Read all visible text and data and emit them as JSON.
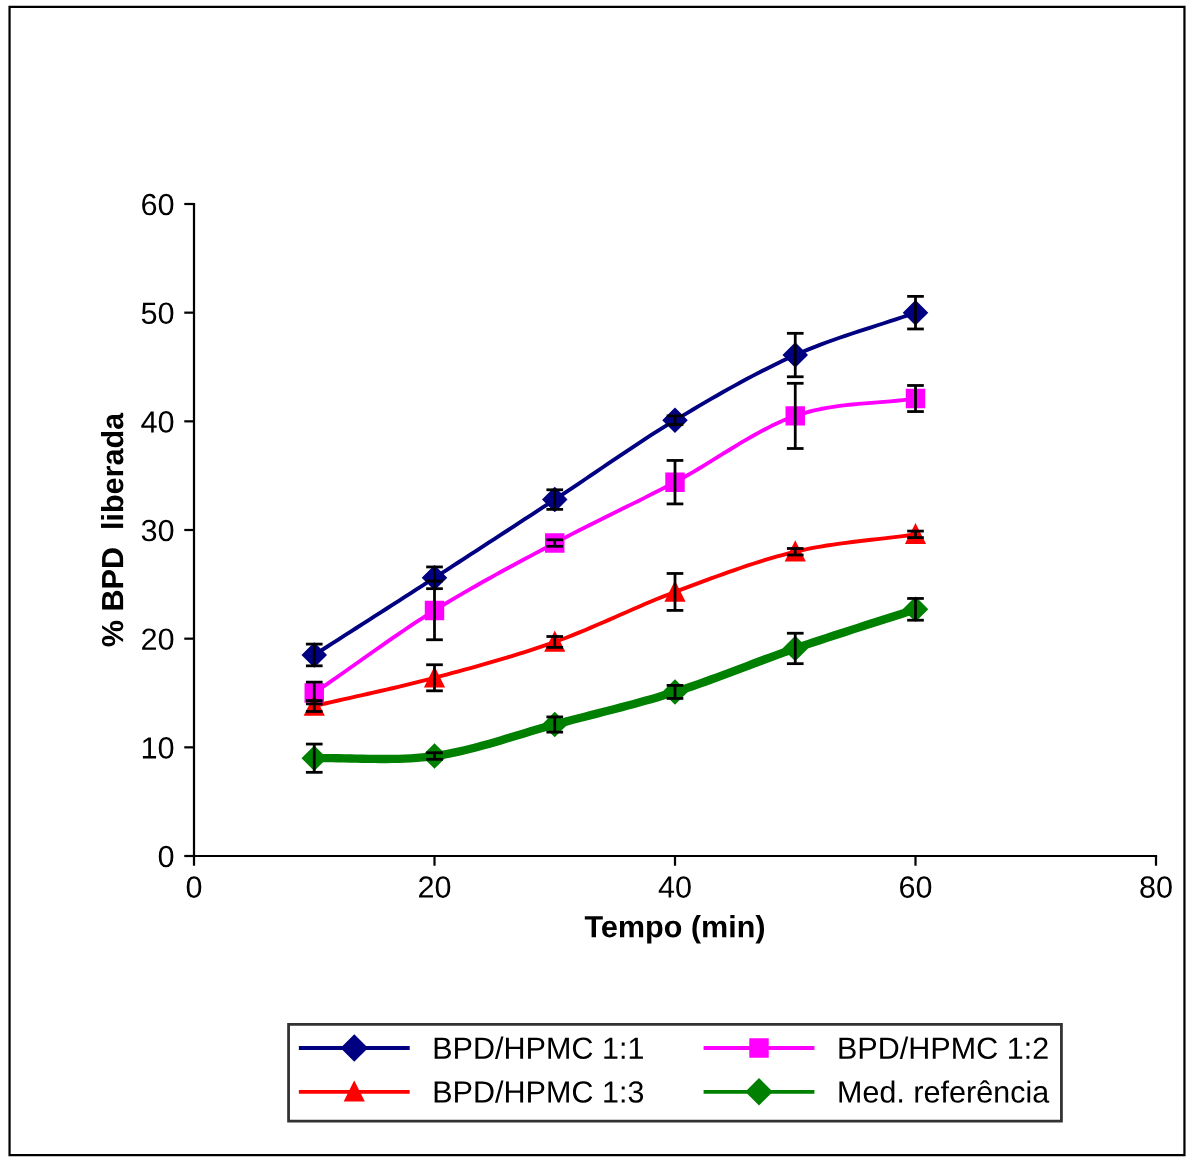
{
  "chart_data": {
    "type": "line",
    "xlabel": "Tempo (min)",
    "ylabel": "% BPD  liberada",
    "x": [
      10,
      20,
      30,
      40,
      50,
      60
    ],
    "xlim": [
      0,
      80
    ],
    "xticks": [
      0,
      20,
      40,
      60,
      80
    ],
    "ylim": [
      0,
      60
    ],
    "yticks": [
      0,
      10,
      20,
      30,
      40,
      50,
      60
    ],
    "grid": false,
    "legend": "bottom",
    "series": [
      {
        "name": "BPD/HPMC 1:1",
        "color": "#000080",
        "marker": "diamond",
        "values": [
          18.5,
          25.6,
          32.8,
          40.1,
          46.1,
          50.0
        ],
        "errors": [
          1.0,
          1.0,
          0.9,
          0.4,
          2.0,
          1.5
        ]
      },
      {
        "name": "BPD/HPMC 1:2",
        "color": "#ff00ff",
        "marker": "square",
        "values": [
          15.0,
          22.6,
          28.8,
          34.4,
          40.5,
          42.1
        ],
        "errors": [
          1.0,
          2.7,
          0.3,
          2.0,
          3.0,
          1.2
        ]
      },
      {
        "name": "BPD/HPMC 1:3",
        "color": "#ff0000",
        "marker": "triangle",
        "values": [
          13.8,
          16.4,
          19.7,
          24.3,
          28.0,
          29.6
        ],
        "errors": [
          0.5,
          1.2,
          0.5,
          1.7,
          0.3,
          0.3
        ]
      },
      {
        "name": "Med. referência",
        "color": "#008000",
        "marker": "diamond",
        "values": [
          9.0,
          9.2,
          12.1,
          15.1,
          19.1,
          22.7
        ],
        "errors": [
          1.3,
          0.3,
          0.7,
          0.6,
          1.4,
          1.0
        ]
      }
    ]
  }
}
